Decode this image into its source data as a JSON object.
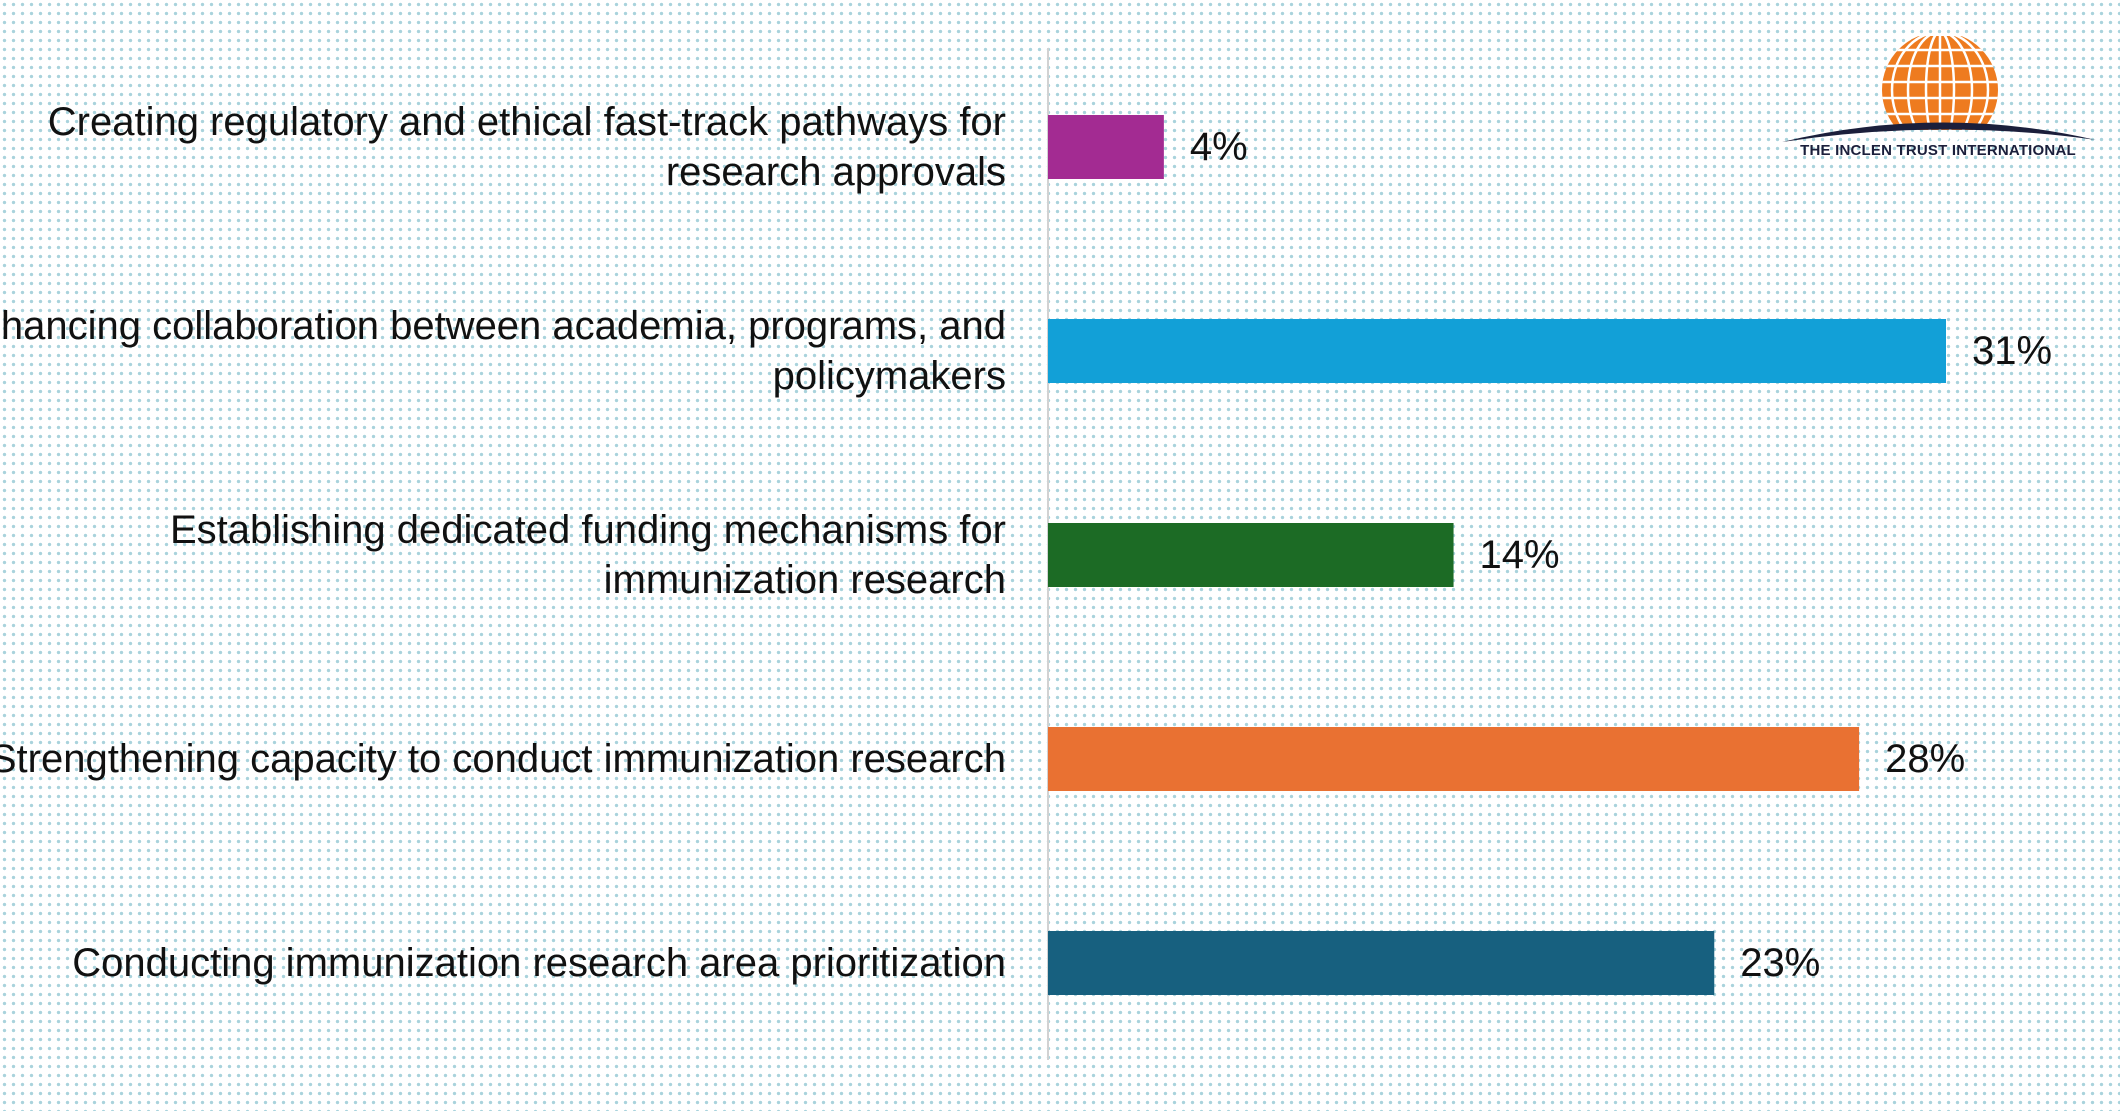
{
  "logo": {
    "text": "THE INCLEN TRUST INTERNATIONAL",
    "globe_color": "#ee7b1f",
    "swoosh_color": "#1b1f3b"
  },
  "chart_data": {
    "type": "bar",
    "orientation": "horizontal",
    "categories": [
      [
        "Creating regulatory and ethical fast-track pathways for",
        "research approvals"
      ],
      [
        "Enhancing collaboration between academia, programs, and",
        "policymakers"
      ],
      [
        "Establishing dedicated funding mechanisms for",
        "immunization research"
      ],
      [
        "Strengthening capacity to conduct immunization research"
      ],
      [
        "Conducting immunization research area prioritization"
      ]
    ],
    "values": [
      4,
      31,
      14,
      28,
      23
    ],
    "value_labels": [
      "4%",
      "31%",
      "14%",
      "28%",
      "23%"
    ],
    "colors": [
      "#a32b92",
      "#12a0d7",
      "#1c6b25",
      "#e97132",
      "#17607f"
    ],
    "xlim": [
      0,
      31
    ],
    "title": "",
    "xlabel": "",
    "ylabel": "",
    "grid": false,
    "legend": false
  }
}
